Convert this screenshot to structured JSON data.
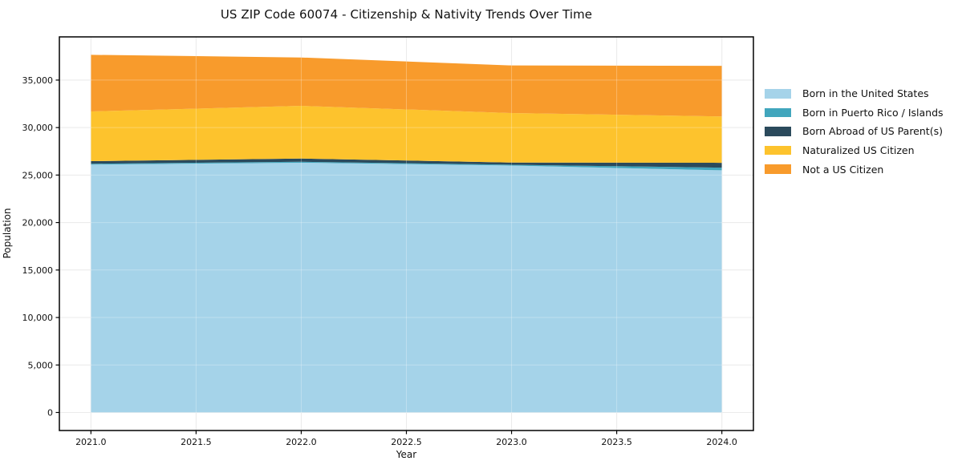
{
  "page_title": "US ZIP Code 60074 - Citizenship & Nativity Trends Over Time",
  "chart_data": {
    "type": "area",
    "stacked": true,
    "title": "US ZIP Code 60074 - Citizenship & Nativity Trends Over Time",
    "xlabel": "Year",
    "ylabel": "Population",
    "x": [
      2021,
      2022,
      2023,
      2024
    ],
    "series": [
      {
        "name": "Born in the United States",
        "color": "#a5d3e9",
        "values": [
          26100,
          26300,
          26000,
          25500
        ]
      },
      {
        "name": "Born in Puerto Rico / Islands",
        "color": "#41a6bd",
        "values": [
          90,
          100,
          90,
          280
        ]
      },
      {
        "name": "Born Abroad of US Parent(s)",
        "color": "#2b4a5c",
        "values": [
          270,
          340,
          230,
          510
        ]
      },
      {
        "name": "Naturalized US Citizen",
        "color": "#fdc32d",
        "values": [
          5240,
          5550,
          5210,
          4880
        ]
      },
      {
        "name": "Not a US Citizen",
        "color": "#f89b2c",
        "values": [
          5960,
          5090,
          5010,
          5330
        ]
      }
    ],
    "stack_totals": [
      37660,
      37380,
      36540,
      36500
    ],
    "x_tick_labels": [
      "2021.0",
      "2021.5",
      "2022.0",
      "2022.5",
      "2023.0",
      "2023.5",
      "2024.0"
    ],
    "x_tick_values": [
      2021,
      2021.5,
      2022,
      2022.5,
      2023,
      2023.5,
      2024
    ],
    "y_tick_labels": [
      "0",
      "5,000",
      "10,000",
      "15,000",
      "20,000",
      "25,000",
      "30,000",
      "35,000"
    ],
    "y_tick_values": [
      0,
      5000,
      10000,
      15000,
      20000,
      25000,
      30000,
      35000
    ],
    "xlim": [
      2020.85,
      2024.15
    ],
    "ylim": [
      -1900,
      39550
    ],
    "grid": true,
    "grid_color": "#e3e3e3",
    "frame_color": "#000000",
    "tick_color": "#000000",
    "text_color": "#111111",
    "legend_position": "right outside"
  }
}
